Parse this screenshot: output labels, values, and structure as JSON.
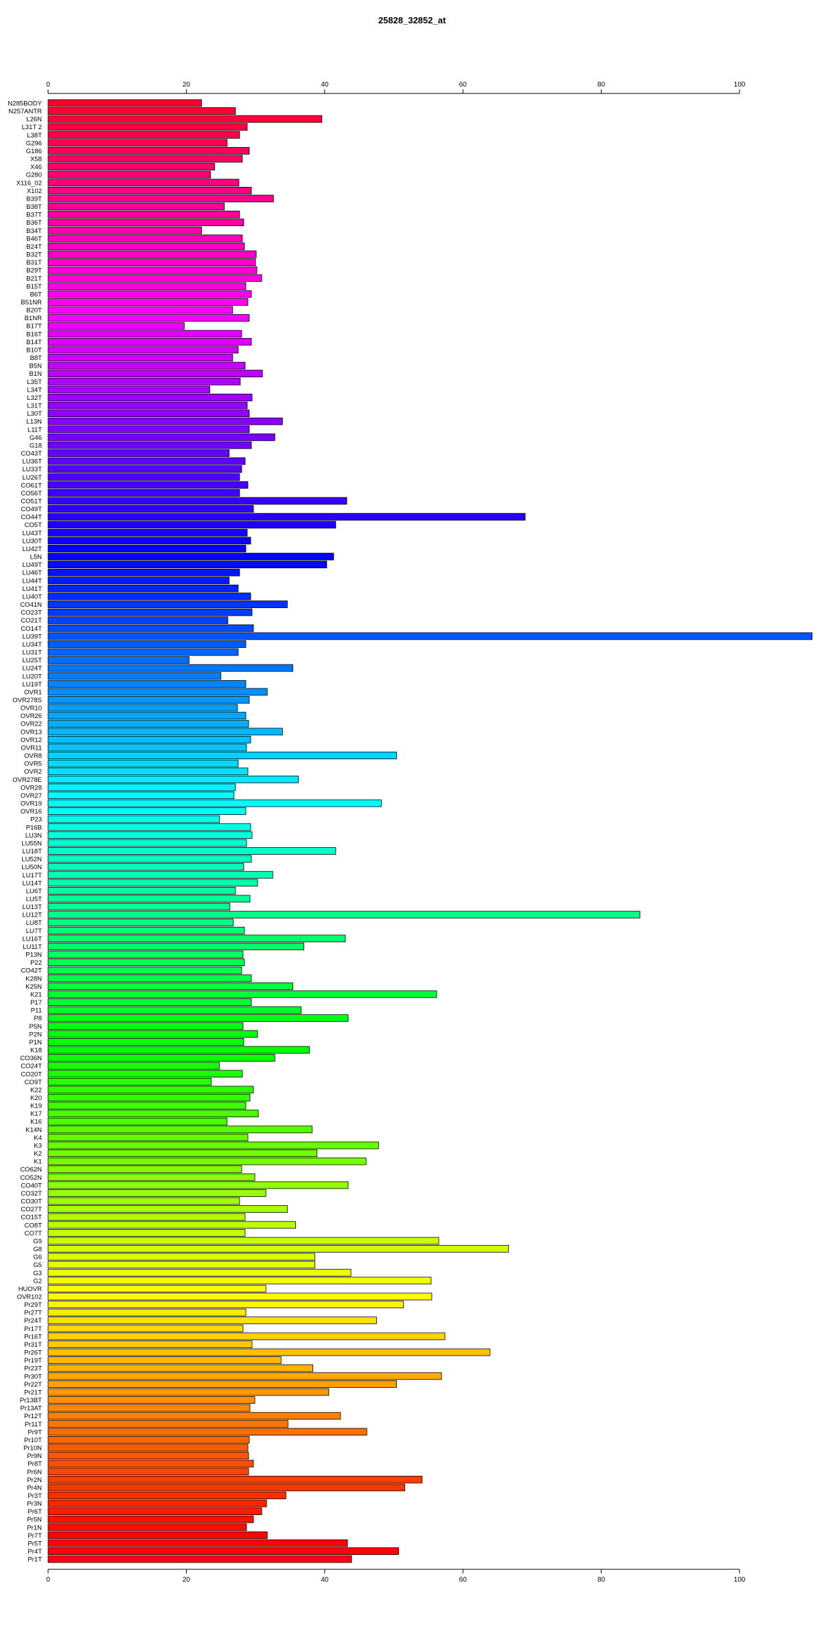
{
  "chart_data": {
    "type": "bar",
    "orientation": "horizontal",
    "title": "25828_32852_at",
    "xlabel": "",
    "ylabel": "",
    "xlim": [
      0,
      110
    ],
    "xticks": [
      0,
      20,
      40,
      60,
      80,
      100
    ],
    "xtick_labels": [
      "0",
      "20",
      "40",
      "60",
      "80",
      "100"
    ],
    "grid": false,
    "legend": "none",
    "categories": [
      "N285BODY",
      "N257ANTR",
      "L26N",
      "L31T 2",
      "L38T",
      "G296",
      "G186",
      "X58",
      "X46",
      "G280",
      "X116_02",
      "X102",
      "B39T",
      "B38T",
      "B37T",
      "B36T",
      "B34T",
      "B46T",
      "B24T",
      "B32T",
      "B31T",
      "B29T",
      "B21T",
      "B15T",
      "B6T",
      "B51NR",
      "B20T",
      "B1NR",
      "B17T",
      "B16T",
      "B14T",
      "B10T",
      "B8T",
      "B5N",
      "B1N",
      "L35T",
      "L34T",
      "L32T",
      "L31T",
      "L30T",
      "L13N",
      "L11T",
      "G46",
      "G18",
      "CO43T",
      "LU36T",
      "LU33T",
      "LU26T",
      "CO61T",
      "CO56T",
      "CO51T",
      "CO49T",
      "CO44T",
      "CO5T",
      "LU43T",
      "LU30T",
      "LU42T",
      "L5N",
      "LU49T",
      "LU46T",
      "LU44T",
      "LU41T",
      "LU40T",
      "CO41N",
      "CO23T",
      "CO21T",
      "CO14T",
      "LU39T",
      "LU34T",
      "LU31T",
      "LU25T",
      "LU24T",
      "LU20T",
      "LU19T",
      "OVR1",
      "OVR278S",
      "OVR10",
      "OVR26",
      "OVR22",
      "OVR13",
      "OVR12",
      "OVR11",
      "OVR8",
      "OVR5",
      "OVR2",
      "OVR278E",
      "OVR28",
      "OVR27",
      "OVR19",
      "OVR16",
      "P23",
      "P16B",
      "LU3N",
      "LU55N",
      "LU18T",
      "LU52N",
      "LU50N",
      "LU17T",
      "LU14T",
      "LU6T",
      "LU5T",
      "LU13T",
      "LU12T",
      "LU8T",
      "LU7T",
      "LU16T",
      "LU11T",
      "P13N",
      "P22",
      "CO42T",
      "K28N",
      "K25N",
      "K21",
      "P17",
      "P11",
      "P8",
      "P5N",
      "P2N",
      "P1N",
      "K18",
      "CO36N",
      "CO24T",
      "CO20T",
      "CO9T",
      "K22",
      "K20",
      "K19",
      "K17",
      "K16",
      "K14N",
      "K4",
      "K3",
      "K2",
      "K1",
      "CO62N",
      "CO52N",
      "CO40T",
      "CO32T",
      "CO30T",
      "CO27T",
      "CO15T",
      "CO8T",
      "CO7T",
      "G9",
      "G8",
      "G6",
      "G5",
      "G3",
      "G2",
      "HUOVR",
      "OVR102",
      "Pr29T",
      "Pr27T",
      "Pr24T",
      "Pr17T",
      "Pr16T",
      "Pr31T",
      "Pr26T",
      "Pr19T",
      "Pr23T",
      "Pr30T",
      "Pr22T",
      "Pr21T",
      "Pr13BT",
      "Pr13AT",
      "Pr12T",
      "Pr11T",
      "Pr9T",
      "Pr10T",
      "Pr10N",
      "Pr9N",
      "Pr8T",
      "Pr6N",
      "Pr2N",
      "Pr4N",
      "Pr3T",
      "Pr3N",
      "Pr6T",
      "Pr5N",
      "Pr1N",
      "Pr7T",
      "Pr5T",
      "Pr4T",
      "Pr1T"
    ],
    "values": [
      22.2,
      27.1,
      39.6,
      28.8,
      27.7,
      25.9,
      29.1,
      28.1,
      24.1,
      23.5,
      27.6,
      29.4,
      32.6,
      25.5,
      27.7,
      28.3,
      22.2,
      28.1,
      28.4,
      30.1,
      30.0,
      30.2,
      30.9,
      28.6,
      29.4,
      28.9,
      26.7,
      29.1,
      19.7,
      28.0,
      29.4,
      27.5,
      26.7,
      28.5,
      31.0,
      27.8,
      23.4,
      29.5,
      28.8,
      29.1,
      33.9,
      29.1,
      32.8,
      29.4,
      26.2,
      28.5,
      28.0,
      27.7,
      28.9,
      27.7,
      43.2,
      29.7,
      69.0,
      41.6,
      28.8,
      29.3,
      28.6,
      41.3,
      40.3,
      27.7,
      26.2,
      27.5,
      29.3,
      34.6,
      29.5,
      26.0,
      29.7,
      110.5,
      28.6,
      27.5,
      20.4,
      35.4,
      25.0,
      28.6,
      31.7,
      29.1,
      27.4,
      28.6,
      29.0,
      33.9,
      29.3,
      28.7,
      50.4,
      27.5,
      28.9,
      36.2,
      27.1,
      26.9,
      48.2,
      28.6,
      24.8,
      29.3,
      29.5,
      28.7,
      41.6,
      29.4,
      28.3,
      32.5,
      30.3,
      27.1,
      29.2,
      26.3,
      85.6,
      26.8,
      28.4,
      43.0,
      37.0,
      28.2,
      28.4,
      28.0,
      29.4,
      35.4,
      56.2,
      29.4,
      36.6,
      43.4,
      28.2,
      30.3,
      28.3,
      37.8,
      32.8,
      24.8,
      28.1,
      23.6,
      29.7,
      29.2,
      28.6,
      30.4,
      25.9,
      38.2,
      28.9,
      47.8,
      38.9,
      46.0,
      28.0,
      29.9,
      43.4,
      31.5,
      27.7,
      34.6,
      28.5,
      35.8,
      28.5,
      56.5,
      66.6,
      38.6,
      38.6,
      43.8,
      55.4,
      31.5,
      55.5,
      51.4,
      28.6,
      47.5,
      28.2,
      57.4,
      29.5,
      63.9,
      33.7,
      38.3,
      56.9,
      50.4,
      40.6,
      29.9,
      29.2,
      42.3,
      34.7,
      46.1,
      29.1,
      28.9,
      29.0,
      29.7,
      29.0,
      54.1,
      51.6,
      34.4,
      31.6,
      30.9,
      29.7,
      28.7,
      31.7,
      43.3,
      50.7,
      43.9
    ]
  }
}
